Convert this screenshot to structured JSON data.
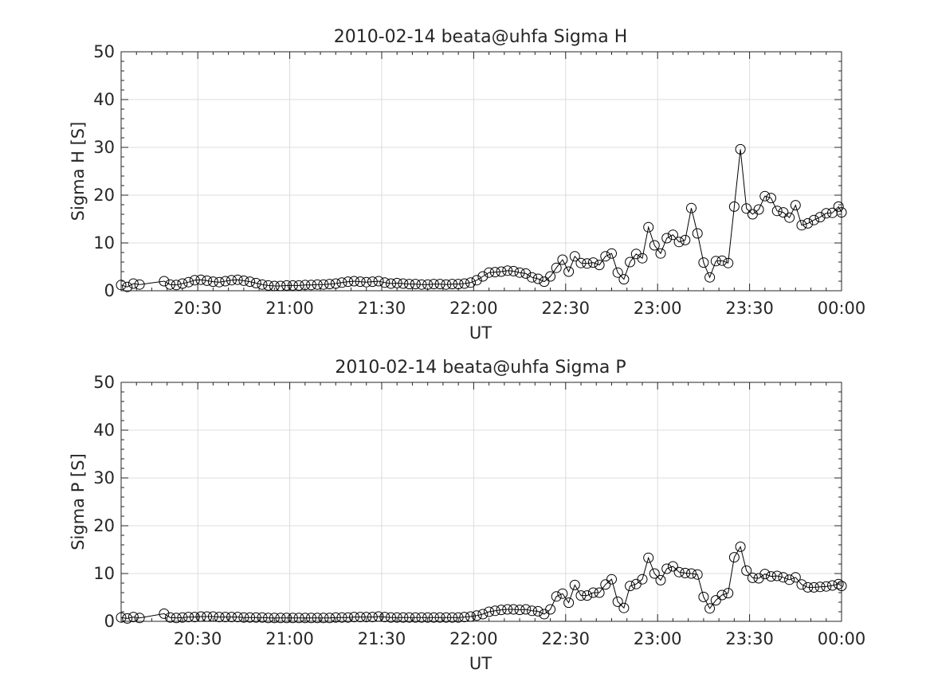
{
  "chart_data": [
    {
      "type": "line",
      "title": "2010-02-14  beata@uhfa Sigma H",
      "xlabel": "UT",
      "ylabel": "Sigma H [S]",
      "xlim": [
        "20:05",
        "00:00"
      ],
      "ylim": [
        0,
        50
      ],
      "grid": true,
      "marker": "open-circle",
      "x_ticks": [
        "20:30",
        "21:00",
        "21:30",
        "22:00",
        "22:30",
        "23:00",
        "23:30",
        "00:00"
      ],
      "y_ticks": [
        "0",
        "10",
        "20",
        "30",
        "40",
        "50"
      ],
      "series": [
        {
          "times": [
            "20:05",
            "20:07",
            "20:09",
            "20:11",
            "20:19",
            "20:21",
            "20:23",
            "20:25",
            "20:27",
            "20:29",
            "20:31",
            "20:33",
            "20:35",
            "20:37",
            "20:39",
            "20:41",
            "20:43",
            "20:45",
            "20:47",
            "20:49",
            "20:51",
            "20:53",
            "20:55",
            "20:57",
            "20:59",
            "21:01",
            "21:03",
            "21:05",
            "21:07",
            "21:09",
            "21:11",
            "21:13",
            "21:15",
            "21:17",
            "21:19",
            "21:21",
            "21:23",
            "21:25",
            "21:27",
            "21:29",
            "21:31",
            "21:33",
            "21:35",
            "21:37",
            "21:39",
            "21:41",
            "21:43",
            "21:45",
            "21:47",
            "21:49",
            "21:51",
            "21:53",
            "21:55",
            "21:57",
            "21:59",
            "22:01",
            "22:03",
            "22:05",
            "22:07",
            "22:09",
            "22:11",
            "22:13",
            "22:15",
            "22:17",
            "22:19",
            "22:21",
            "22:23",
            "22:25",
            "22:27",
            "22:29",
            "22:31",
            "22:33",
            "22:35",
            "22:37",
            "22:39",
            "22:41",
            "22:43",
            "22:45",
            "22:47",
            "22:49",
            "22:51",
            "22:53",
            "22:55",
            "22:57",
            "22:59",
            "23:01",
            "23:03",
            "23:05",
            "23:07",
            "23:09",
            "23:11",
            "23:13",
            "23:15",
            "23:17",
            "23:19",
            "23:21",
            "23:23",
            "23:25",
            "23:27",
            "23:29",
            "23:31",
            "23:33",
            "23:35",
            "23:37",
            "23:39",
            "23:41",
            "23:43",
            "23:45",
            "23:47",
            "23:49",
            "23:51",
            "23:53",
            "23:55",
            "23:57",
            "23:59",
            "00:00"
          ],
          "values": [
            1.2,
            0.8,
            1.5,
            1.3,
            2.0,
            1.3,
            1.2,
            1.5,
            1.8,
            2.2,
            2.3,
            2.1,
            1.9,
            1.8,
            2.0,
            2.2,
            2.3,
            2.1,
            1.9,
            1.6,
            1.3,
            1.1,
            1.0,
            1.0,
            1.1,
            1.1,
            1.1,
            1.2,
            1.2,
            1.3,
            1.3,
            1.4,
            1.5,
            1.7,
            1.9,
            2.0,
            1.9,
            1.8,
            1.9,
            2.0,
            1.7,
            1.5,
            1.6,
            1.5,
            1.4,
            1.4,
            1.3,
            1.3,
            1.4,
            1.4,
            1.3,
            1.4,
            1.4,
            1.5,
            1.7,
            2.2,
            3.0,
            3.8,
            3.9,
            4.0,
            4.2,
            4.1,
            3.8,
            3.6,
            2.8,
            2.5,
            1.9,
            3.0,
            4.8,
            6.5,
            4.0,
            7.2,
            5.8,
            5.7,
            5.9,
            5.4,
            7.2,
            7.8,
            3.8,
            2.4,
            6.0,
            7.7,
            6.8,
            13.3,
            9.5,
            7.8,
            11.0,
            11.7,
            10.2,
            10.6,
            17.3,
            12.0,
            5.9,
            2.8,
            6.2,
            6.3,
            5.8,
            17.6,
            29.6,
            17.2,
            16.0,
            17.0,
            19.8,
            19.4,
            16.7,
            16.4,
            15.3,
            17.9,
            13.7,
            14.1,
            14.8,
            15.4,
            16.2,
            16.3,
            17.6,
            16.4
          ]
        }
      ]
    },
    {
      "type": "line",
      "title": "2010-02-14  beata@uhfa Sigma P",
      "xlabel": "UT",
      "ylabel": "Sigma P [S]",
      "xlim": [
        "20:05",
        "00:00"
      ],
      "ylim": [
        0,
        50
      ],
      "grid": true,
      "marker": "open-circle",
      "x_ticks": [
        "20:30",
        "21:00",
        "21:30",
        "22:00",
        "22:30",
        "23:00",
        "23:30",
        "00:00"
      ],
      "y_ticks": [
        "0",
        "10",
        "20",
        "30",
        "40",
        "50"
      ],
      "series": [
        {
          "times": [
            "20:05",
            "20:07",
            "20:09",
            "20:11",
            "20:19",
            "20:21",
            "20:23",
            "20:25",
            "20:27",
            "20:29",
            "20:31",
            "20:33",
            "20:35",
            "20:37",
            "20:39",
            "20:41",
            "20:43",
            "20:45",
            "20:47",
            "20:49",
            "20:51",
            "20:53",
            "20:55",
            "20:57",
            "20:59",
            "21:01",
            "21:03",
            "21:05",
            "21:07",
            "21:09",
            "21:11",
            "21:13",
            "21:15",
            "21:17",
            "21:19",
            "21:21",
            "21:23",
            "21:25",
            "21:27",
            "21:29",
            "21:31",
            "21:33",
            "21:35",
            "21:37",
            "21:39",
            "21:41",
            "21:43",
            "21:45",
            "21:47",
            "21:49",
            "21:51",
            "21:53",
            "21:55",
            "21:57",
            "21:59",
            "22:01",
            "22:03",
            "22:05",
            "22:07",
            "22:09",
            "22:11",
            "22:13",
            "22:15",
            "22:17",
            "22:19",
            "22:21",
            "22:23",
            "22:25",
            "22:27",
            "22:29",
            "22:31",
            "22:33",
            "22:35",
            "22:37",
            "22:39",
            "22:41",
            "22:43",
            "22:45",
            "22:47",
            "22:49",
            "22:51",
            "22:53",
            "22:55",
            "22:57",
            "22:59",
            "23:01",
            "23:03",
            "23:05",
            "23:07",
            "23:09",
            "23:11",
            "23:13",
            "23:15",
            "23:17",
            "23:19",
            "23:21",
            "23:23",
            "23:25",
            "23:27",
            "23:29",
            "23:31",
            "23:33",
            "23:35",
            "23:37",
            "23:39",
            "23:41",
            "23:43",
            "23:45",
            "23:47",
            "23:49",
            "23:51",
            "23:53",
            "23:55",
            "23:57",
            "23:59",
            "00:00"
          ],
          "values": [
            0.8,
            0.6,
            0.9,
            0.7,
            1.6,
            0.8,
            0.7,
            0.8,
            0.9,
            0.9,
            1.0,
            1.0,
            1.0,
            0.9,
            0.9,
            0.9,
            0.9,
            0.8,
            0.8,
            0.8,
            0.8,
            0.7,
            0.7,
            0.7,
            0.7,
            0.7,
            0.7,
            0.7,
            0.7,
            0.7,
            0.7,
            0.7,
            0.8,
            0.8,
            0.8,
            0.9,
            0.9,
            0.9,
            0.9,
            1.0,
            0.9,
            0.8,
            0.8,
            0.8,
            0.8,
            0.8,
            0.8,
            0.8,
            0.8,
            0.8,
            0.8,
            0.8,
            0.8,
            0.9,
            1.0,
            1.2,
            1.5,
            2.0,
            2.2,
            2.4,
            2.5,
            2.5,
            2.4,
            2.5,
            2.2,
            2.1,
            1.5,
            2.5,
            5.2,
            5.8,
            3.9,
            7.6,
            5.4,
            5.4,
            6.0,
            6.0,
            7.7,
            8.8,
            4.1,
            2.8,
            7.4,
            7.8,
            8.8,
            13.3,
            10.0,
            8.6,
            11.0,
            11.5,
            10.3,
            10.1,
            10.0,
            9.8,
            5.1,
            2.7,
            4.4,
            5.5,
            5.9,
            13.4,
            15.6,
            10.6,
            9.1,
            9.0,
            9.9,
            9.4,
            9.5,
            9.2,
            8.7,
            9.2,
            7.7,
            7.1,
            7.1,
            7.2,
            7.3,
            7.5,
            7.8,
            7.4
          ]
        }
      ]
    }
  ]
}
